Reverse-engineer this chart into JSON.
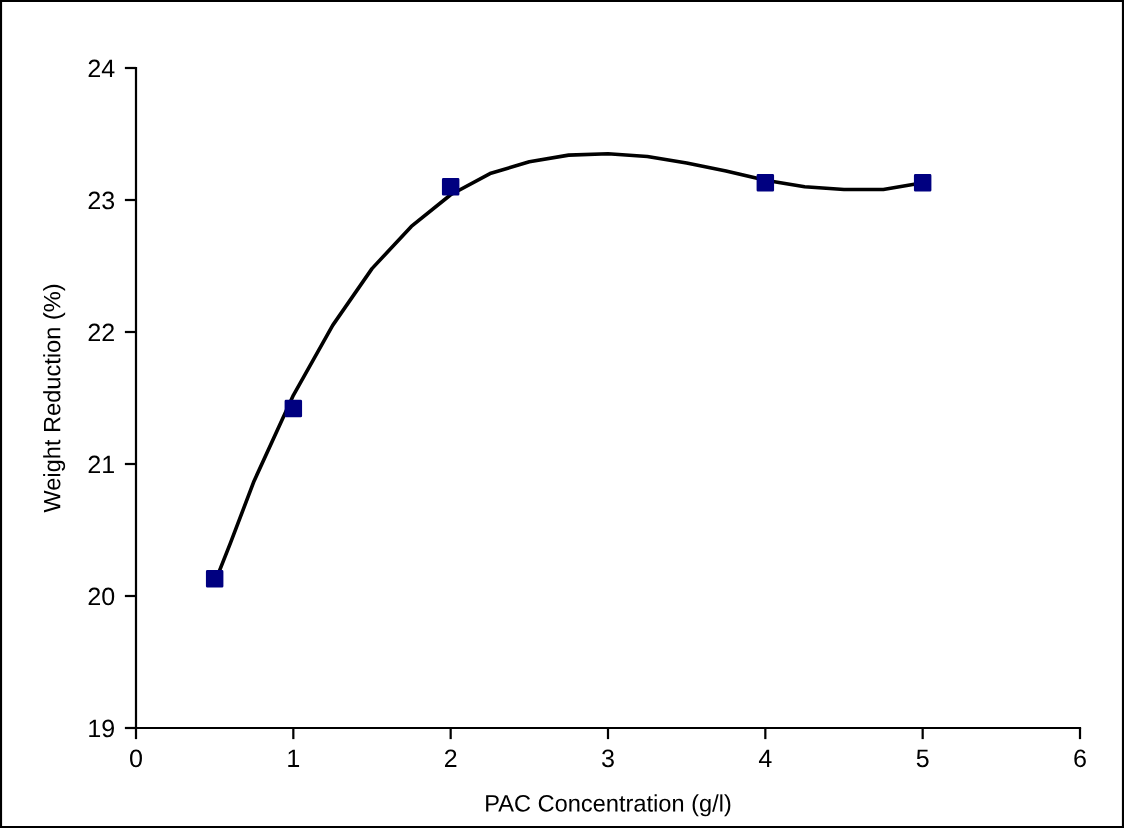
{
  "chart_data": {
    "type": "scatter",
    "xlabel": "PAC Concentration (g/l)",
    "ylabel": "Weight Reduction (%)",
    "xlim": [
      0,
      6
    ],
    "xticks": [
      0,
      1,
      2,
      3,
      4,
      5,
      6
    ],
    "ylim": [
      19,
      24
    ],
    "yticks": [
      19,
      20,
      21,
      22,
      23,
      24
    ],
    "grid": false,
    "legend": false,
    "marker": "square",
    "series": [
      {
        "color": "#000080",
        "x": [
          0.5,
          1,
          2,
          4,
          5
        ],
        "values": [
          20.13,
          21.42,
          23.1,
          23.13,
          23.13
        ]
      },
      {
        "type": "line",
        "color": "#000000",
        "marker": "none",
        "line_style": "solid",
        "x": [
          0.5,
          0.6,
          0.75,
          1,
          1.25,
          1.5,
          1.75,
          2,
          2.25,
          2.5,
          2.75,
          3,
          3.25,
          3.5,
          3.75,
          4,
          4.25,
          4.5,
          4.75,
          5
        ],
        "values": [
          20.1,
          20.4,
          20.87,
          21.52,
          22.05,
          22.48,
          22.8,
          23.04,
          23.2,
          23.29,
          23.34,
          23.35,
          23.33,
          23.28,
          23.22,
          23.15,
          23.1,
          23.08,
          23.08,
          23.13
        ]
      }
    ]
  }
}
